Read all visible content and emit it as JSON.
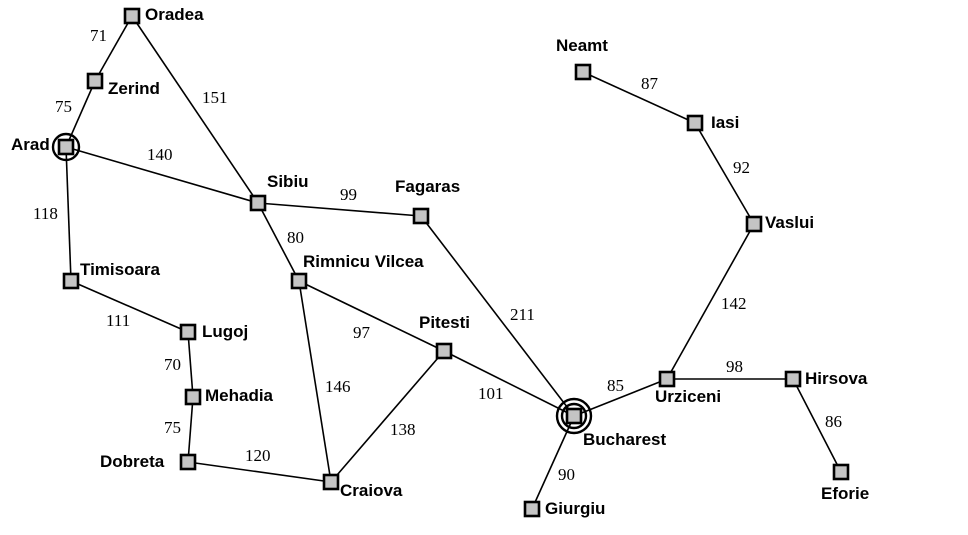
{
  "cities": {
    "oradea": "Oradea",
    "zerind": "Zerind",
    "arad": "Arad",
    "timisoara": "Timisoara",
    "lugoj": "Lugoj",
    "mehadia": "Mehadia",
    "dobreta": "Dobreta",
    "craiova": "Craiova",
    "sibiu": "Sibiu",
    "rimnicu": "Rimnicu Vilcea",
    "fagaras": "Fagaras",
    "pitesti": "Pitesti",
    "bucharest": "Bucharest",
    "giurgiu": "Giurgiu",
    "urziceni": "Urziceni",
    "hirsova": "Hirsova",
    "eforie": "Eforie",
    "vaslui": "Vaslui",
    "iasi": "Iasi",
    "neamt": "Neamt"
  },
  "roads": [
    {
      "from": "Oradea",
      "to": "Zerind",
      "distance": "71"
    },
    {
      "from": "Zerind",
      "to": "Arad",
      "distance": "75"
    },
    {
      "from": "Oradea",
      "to": "Sibiu",
      "distance": "151"
    },
    {
      "from": "Arad",
      "to": "Sibiu",
      "distance": "140"
    },
    {
      "from": "Arad",
      "to": "Timisoara",
      "distance": "118"
    },
    {
      "from": "Timisoara",
      "to": "Lugoj",
      "distance": "111"
    },
    {
      "from": "Lugoj",
      "to": "Mehadia",
      "distance": "70"
    },
    {
      "from": "Mehadia",
      "to": "Dobreta",
      "distance": "75"
    },
    {
      "from": "Dobreta",
      "to": "Craiova",
      "distance": "120"
    },
    {
      "from": "Sibiu",
      "to": "Fagaras",
      "distance": "99"
    },
    {
      "from": "Sibiu",
      "to": "Rimnicu Vilcea",
      "distance": "80"
    },
    {
      "from": "Rimnicu Vilcea",
      "to": "Pitesti",
      "distance": "97"
    },
    {
      "from": "Rimnicu Vilcea",
      "to": "Craiova",
      "distance": "146"
    },
    {
      "from": "Craiova",
      "to": "Pitesti",
      "distance": "138"
    },
    {
      "from": "Pitesti",
      "to": "Bucharest",
      "distance": "101"
    },
    {
      "from": "Fagaras",
      "to": "Bucharest",
      "distance": "211"
    },
    {
      "from": "Bucharest",
      "to": "Giurgiu",
      "distance": "90"
    },
    {
      "from": "Bucharest",
      "to": "Urziceni",
      "distance": "85"
    },
    {
      "from": "Urziceni",
      "to": "Hirsova",
      "distance": "98"
    },
    {
      "from": "Hirsova",
      "to": "Eforie",
      "distance": "86"
    },
    {
      "from": "Urziceni",
      "to": "Vaslui",
      "distance": "142"
    },
    {
      "from": "Vaslui",
      "to": "Iasi",
      "distance": "92"
    },
    {
      "from": "Iasi",
      "to": "Neamt",
      "distance": "87"
    }
  ],
  "highlighted": {
    "start": "Arad",
    "goal": "Bucharest"
  },
  "colors": {
    "node_fill": "#c4c4c4",
    "stroke": "#000000",
    "background": "#ffffff"
  }
}
